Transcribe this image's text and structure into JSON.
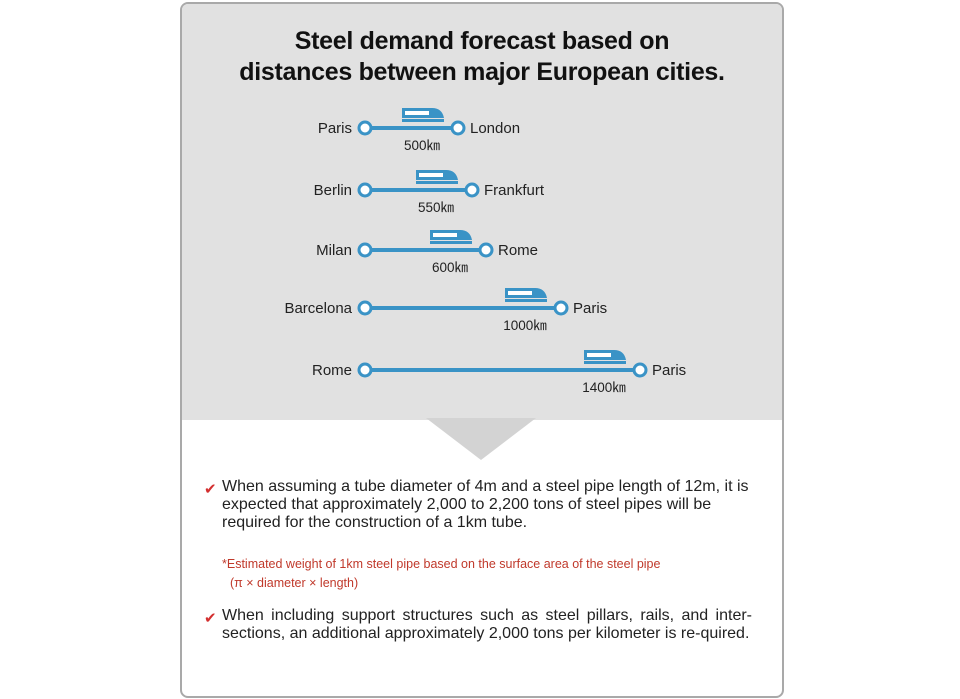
{
  "title": {
    "line1": "Steel demand forecast based on",
    "line2": "distances between major European cities."
  },
  "routes": [
    {
      "from": "Paris",
      "to": "London",
      "distance": "500㎞"
    },
    {
      "from": "Berlin",
      "to": "Frankfurt",
      "distance": "550㎞"
    },
    {
      "from": "Milan",
      "to": "Rome",
      "distance": "600㎞"
    },
    {
      "from": "Barcelona",
      "to": "Paris",
      "distance": "1000㎞"
    },
    {
      "from": "Rome",
      "to": "Paris",
      "distance": "1400㎞"
    }
  ],
  "points": {
    "first": "When assuming a tube diameter of 4m and a steel pipe length of 12m, it is expected that approximately 2,000 to 2,200 tons of steel pipes will be required for the construction of a 1km tube.",
    "note_line1": "*Estimated weight of 1km steel pipe based on the surface area of the steel pipe",
    "note_line2": "(π × diameter × length)",
    "second": "When including support structures such as steel pillars, rails, and inter-sections, an additional approximately 2,000 tons per kilometer is re-quired."
  },
  "icons": {
    "route_line": "blue-line",
    "train": "train-icon",
    "bullet": "check-icon"
  },
  "colors": {
    "route": "#3a93c6",
    "check": "#d32f2f",
    "note": "#c0392b",
    "panel": "#e1e1e1"
  }
}
